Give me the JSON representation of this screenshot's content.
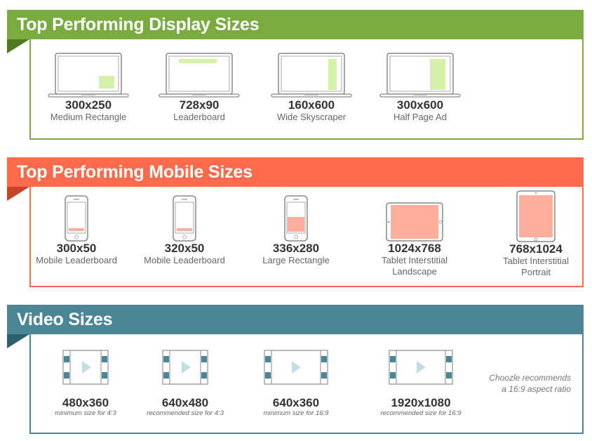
{
  "display": {
    "title": "Top Performing Display Sizes",
    "color": "#7aab3f",
    "ad_color": "#d5f0a8",
    "items": [
      {
        "size": "300x250",
        "name": "Medium Rectangle",
        "icon": "laptop-icon"
      },
      {
        "size": "728x90",
        "name": "Leaderboard",
        "icon": "laptop-icon"
      },
      {
        "size": "160x600",
        "name": "Wide Skyscraper",
        "icon": "laptop-icon"
      },
      {
        "size": "300x600",
        "name": "Half Page Ad",
        "icon": "laptop-icon"
      }
    ]
  },
  "mobile": {
    "title": "Top Performing Mobile Sizes",
    "color": "#ff6b4a",
    "ad_color": "#ffad9c",
    "items": [
      {
        "size": "300x50",
        "name": "Mobile Leaderboard",
        "name2": "",
        "icon": "phone-icon"
      },
      {
        "size": "320x50",
        "name": "Mobile Leaderboard",
        "name2": "",
        "icon": "phone-icon"
      },
      {
        "size": "336x280",
        "name": "Large Rectangle",
        "name2": "",
        "icon": "phone-icon"
      },
      {
        "size": "1024x768",
        "name": "Tablet Interstitial",
        "name2": "Landscape",
        "icon": "tablet-landscape-icon"
      },
      {
        "size": "768x1024",
        "name": "Tablet Interstitial",
        "name2": "Portrait",
        "icon": "tablet-portrait-icon"
      }
    ]
  },
  "video": {
    "title": "Video Sizes",
    "color": "#4a8696",
    "play_color": "#c3dde5",
    "items": [
      {
        "size": "480x360",
        "note": "minimum size for 4:3",
        "icon": "video-icon"
      },
      {
        "size": "640x480",
        "note": "recommended size for 4:3",
        "icon": "video-icon"
      },
      {
        "size": "640x360",
        "note": "minimum size for 16:9",
        "icon": "video-icon"
      },
      {
        "size": "1920x1080",
        "note": "recommended size for 16:9",
        "icon": "video-icon"
      }
    ],
    "recommend_line1": "Choozle recommends",
    "recommend_line2": "a 16:9 aspect ratio"
  }
}
